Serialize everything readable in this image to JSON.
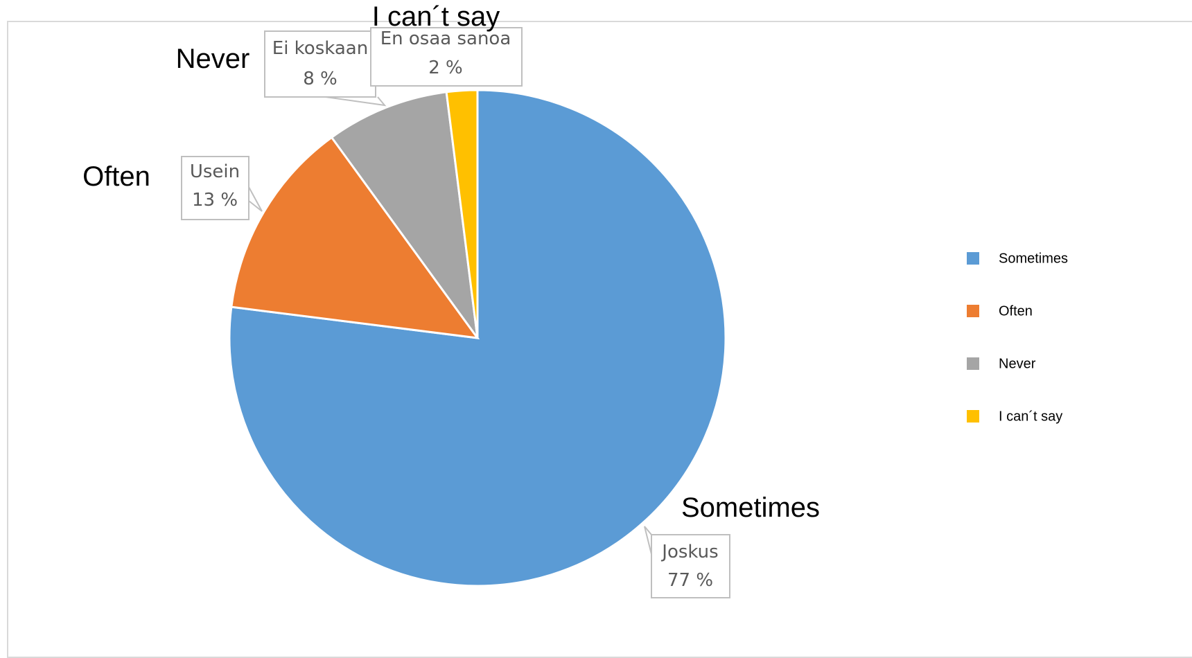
{
  "chart_data": {
    "type": "pie",
    "slices": [
      {
        "label_fi": "Joskus",
        "label_en": "Sometimes",
        "value": 77,
        "value_label": "77 %",
        "color": "#5b9bd5"
      },
      {
        "label_fi": "Usein",
        "label_en": "Often",
        "value": 13,
        "value_label": "13 %",
        "color": "#ed7d31"
      },
      {
        "label_fi": "Ei koskaan",
        "label_en": "Never",
        "value": 8,
        "value_label": "8 %",
        "color": "#a5a5a5"
      },
      {
        "label_fi": "En osaa sanoa",
        "label_en": "I can´t say",
        "value": 2,
        "value_label": "2 %",
        "color": "#ffc000"
      }
    ],
    "legend_position": "right",
    "legend": [
      "Sometimes",
      "Often",
      "Never",
      "I can´t say"
    ]
  }
}
